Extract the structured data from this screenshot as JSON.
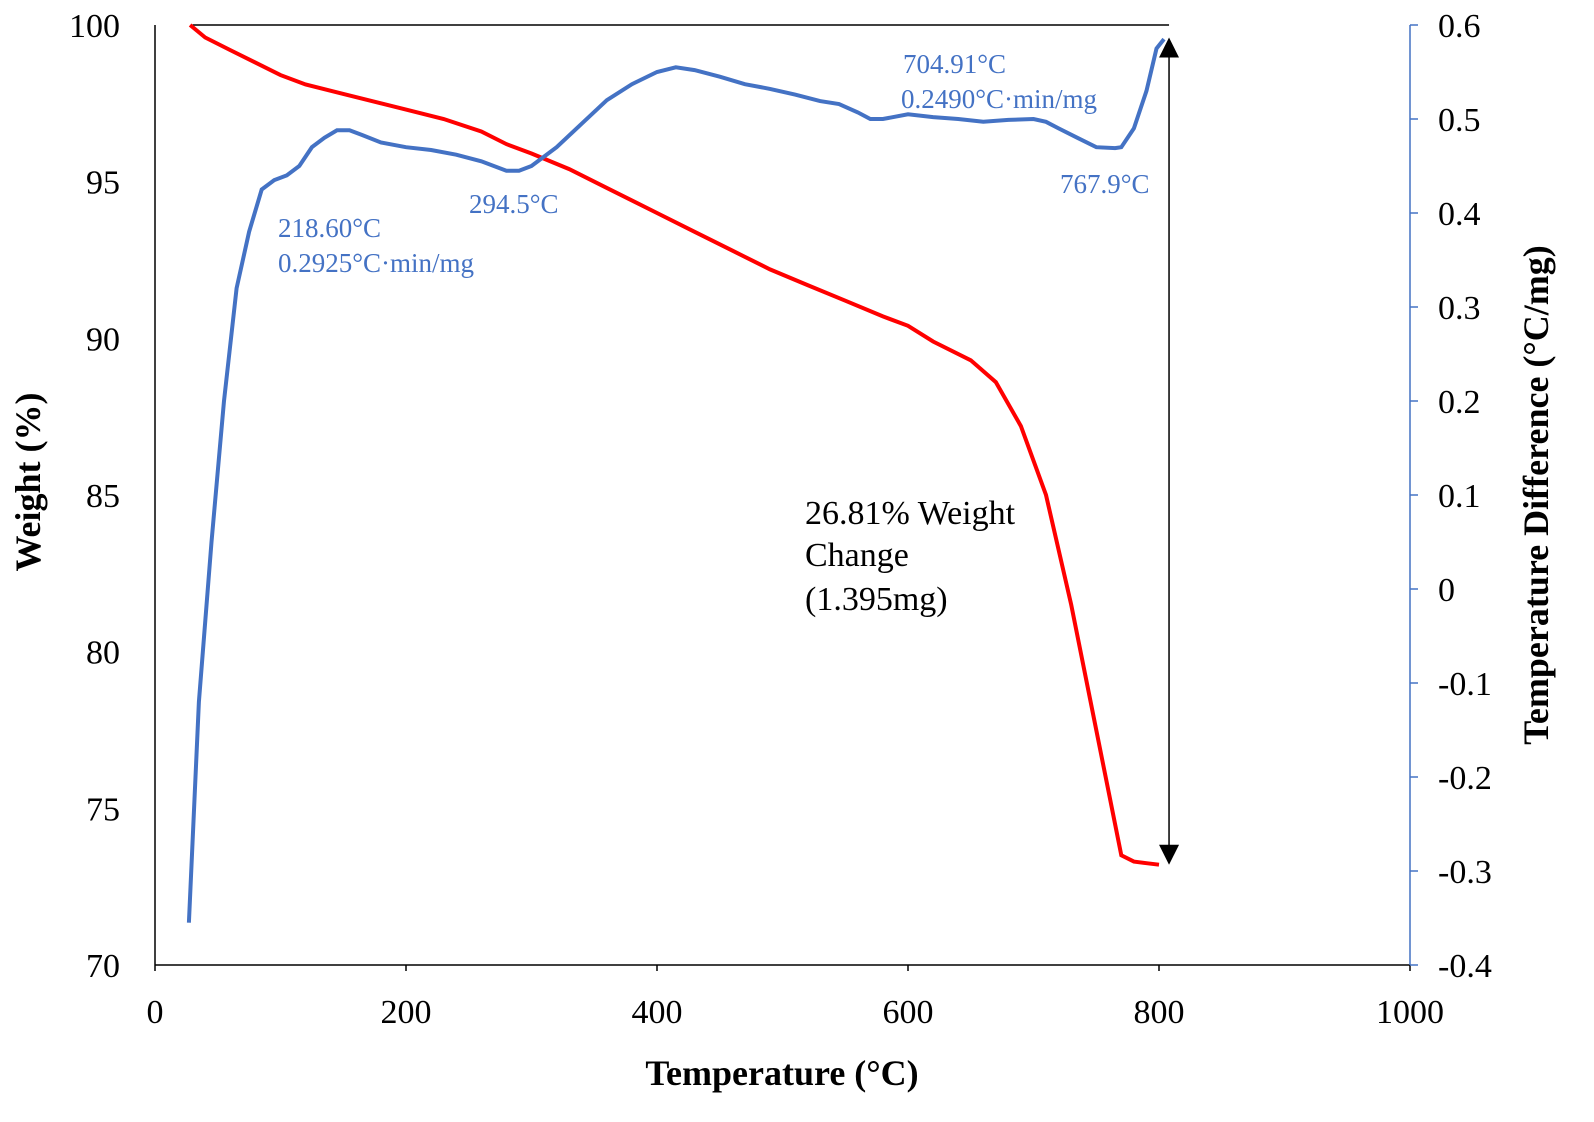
{
  "chart_data": {
    "type": "line",
    "xlabel": "Temperature (°C)",
    "ylabel": "Weight (%)",
    "y2label": "Temperature Difference (°C/mg)",
    "xlim": [
      0,
      1000
    ],
    "ylim": [
      70,
      100
    ],
    "y2lim": [
      -0.4,
      0.6
    ],
    "x_ticks": [
      "0",
      "200",
      "400",
      "600",
      "800",
      "1000"
    ],
    "y_ticks": [
      "70",
      "75",
      "80",
      "85",
      "90",
      "95",
      "100"
    ],
    "y2_ticks": [
      "-0.4",
      "-0.3",
      "-0.2",
      "-0.1",
      "0",
      "0.1",
      "0.2",
      "0.3",
      "0.4",
      "0.5",
      "0.6"
    ],
    "grid": false,
    "colors": {
      "weight": "#ff0000",
      "dta": "#4472c4",
      "axis_right": "#4472c4",
      "annotation": "#000000"
    },
    "series": [
      {
        "axis": "left",
        "color": "#ff0000",
        "x": [
          28,
          40,
          60,
          80,
          100,
          120,
          150,
          180,
          200,
          230,
          260,
          280,
          300,
          330,
          360,
          400,
          430,
          460,
          490,
          520,
          550,
          580,
          600,
          620,
          650,
          670,
          690,
          710,
          730,
          745,
          760,
          770,
          780,
          790,
          800
        ],
        "y": [
          100,
          99.6,
          99.2,
          98.8,
          98.4,
          98.1,
          97.8,
          97.5,
          97.3,
          97.0,
          96.6,
          96.2,
          95.9,
          95.4,
          94.8,
          94.0,
          93.4,
          92.8,
          92.2,
          91.7,
          91.2,
          90.7,
          90.4,
          89.9,
          89.3,
          88.6,
          87.2,
          85.0,
          81.5,
          78.5,
          75.5,
          73.5,
          73.3,
          73.25,
          73.2
        ]
      },
      {
        "axis": "right",
        "color": "#4472c4",
        "x": [
          27,
          35,
          45,
          55,
          65,
          75,
          85,
          95,
          105,
          115,
          125,
          135,
          145,
          155,
          165,
          180,
          200,
          220,
          240,
          260,
          280,
          290,
          300,
          320,
          340,
          360,
          380,
          400,
          415,
          430,
          450,
          470,
          490,
          510,
          530,
          545,
          560,
          570,
          580,
          600,
          620,
          640,
          660,
          680,
          700,
          710,
          720,
          735,
          750,
          765,
          770,
          780,
          790,
          798,
          804
        ],
        "y": [
          -0.355,
          -0.12,
          0.05,
          0.2,
          0.32,
          0.38,
          0.425,
          0.435,
          0.44,
          0.45,
          0.47,
          0.48,
          0.488,
          0.488,
          0.483,
          0.475,
          0.47,
          0.467,
          0.462,
          0.455,
          0.445,
          0.445,
          0.45,
          0.47,
          0.495,
          0.52,
          0.537,
          0.55,
          0.555,
          0.552,
          0.545,
          0.537,
          0.532,
          0.526,
          0.519,
          0.516,
          0.507,
          0.5,
          0.5,
          0.505,
          0.502,
          0.5,
          0.497,
          0.499,
          0.5,
          0.497,
          0.49,
          0.48,
          0.47,
          0.469,
          0.47,
          0.49,
          0.53,
          0.575,
          0.585
        ]
      }
    ],
    "annotations": {
      "peak1_temp": "218.60°C",
      "peak1_rate": "0.2925°C·min/mg",
      "trough1": "294.5°C",
      "peak2_temp": "704.91°C",
      "peak2_rate": "0.2490°C·min/mg",
      "trough2": "767.9°C",
      "weight_change_1": "26.81% Weight",
      "weight_change_2": "Change",
      "weight_change_3": "(1.395mg)"
    },
    "arrow": {
      "x": 808,
      "y_from": 99.6,
      "y_to": 73.2
    },
    "baseline": {
      "x_from": 30,
      "x_to": 808,
      "y": 100
    }
  }
}
